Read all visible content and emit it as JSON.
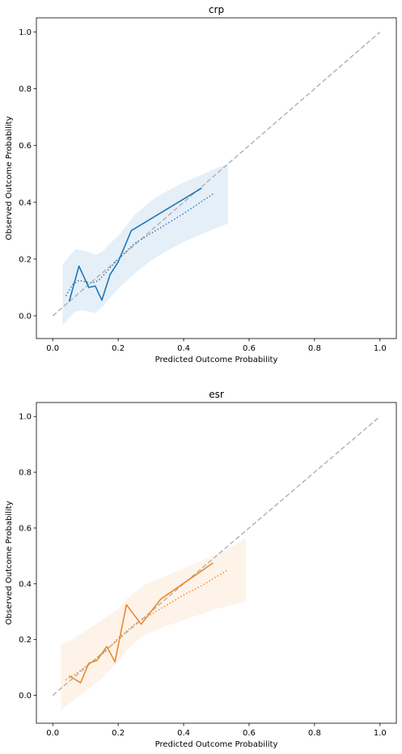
{
  "chart_data": [
    {
      "type": "line",
      "title": "crp",
      "xlabel": "Predicted Outcome Probability",
      "ylabel": "Observed Outcome Probability",
      "xlim": [
        -0.05,
        1.05
      ],
      "ylim": [
        -0.08,
        1.05
      ],
      "xticks": [
        0.0,
        0.2,
        0.4,
        0.6,
        0.8,
        1.0
      ],
      "yticks": [
        0.0,
        0.2,
        0.4,
        0.6,
        0.8,
        1.0
      ],
      "grid": false,
      "color": "#1f77b4",
      "band_color": "#c6dbef",
      "reference_color": "#b0b0b0",
      "reference": {
        "x": [
          0.0,
          1.0
        ],
        "y": [
          0.0,
          1.0
        ]
      },
      "observed": {
        "x": [
          0.05,
          0.08,
          0.11,
          0.13,
          0.15,
          0.175,
          0.2,
          0.24,
          0.455
        ],
        "y": [
          0.05,
          0.175,
          0.1,
          0.105,
          0.055,
          0.145,
          0.19,
          0.3,
          0.45
        ]
      },
      "smoothed": {
        "x": [
          0.04,
          0.06,
          0.08,
          0.1,
          0.12,
          0.14,
          0.16,
          0.2,
          0.25,
          0.3,
          0.4,
          0.49
        ],
        "y": [
          0.07,
          0.11,
          0.125,
          0.12,
          0.115,
          0.125,
          0.15,
          0.2,
          0.255,
          0.29,
          0.36,
          0.43
        ]
      },
      "band": {
        "x": [
          0.03,
          0.05,
          0.07,
          0.09,
          0.11,
          0.13,
          0.15,
          0.18,
          0.2,
          0.25,
          0.3,
          0.35,
          0.4,
          0.45,
          0.5,
          0.535
        ],
        "upper": [
          0.18,
          0.21,
          0.235,
          0.23,
          0.225,
          0.215,
          0.225,
          0.26,
          0.28,
          0.355,
          0.405,
          0.44,
          0.47,
          0.495,
          0.52,
          0.535
        ],
        "lower": [
          -0.035,
          -0.005,
          0.015,
          0.02,
          0.015,
          0.01,
          0.03,
          0.07,
          0.095,
          0.15,
          0.195,
          0.23,
          0.26,
          0.285,
          0.31,
          0.325
        ]
      }
    },
    {
      "type": "line",
      "title": "esr",
      "xlabel": "Predicted Outcome Probability",
      "ylabel": "Observed Outcome Probability",
      "xlim": [
        -0.05,
        1.05
      ],
      "ylim": [
        -0.1,
        1.05
      ],
      "xticks": [
        0.0,
        0.2,
        0.4,
        0.6,
        0.8,
        1.0
      ],
      "yticks": [
        0.0,
        0.2,
        0.4,
        0.6,
        0.8,
        1.0
      ],
      "grid": false,
      "color": "#e8892f",
      "band_color": "#fde4cf",
      "reference_color": "#b0b0b0",
      "reference": {
        "x": [
          0.0,
          1.0
        ],
        "y": [
          0.0,
          1.0
        ]
      },
      "observed": {
        "x": [
          0.05,
          0.085,
          0.11,
          0.135,
          0.165,
          0.19,
          0.225,
          0.27,
          0.33,
          0.49
        ],
        "y": [
          0.07,
          0.045,
          0.115,
          0.125,
          0.175,
          0.12,
          0.325,
          0.255,
          0.345,
          0.475
        ]
      },
      "smoothed": {
        "x": [
          0.04,
          0.08,
          0.12,
          0.16,
          0.2,
          0.25,
          0.3,
          0.35,
          0.4,
          0.45,
          0.5,
          0.535
        ],
        "y": [
          0.055,
          0.085,
          0.12,
          0.155,
          0.205,
          0.255,
          0.29,
          0.325,
          0.36,
          0.39,
          0.425,
          0.45
        ]
      },
      "band": {
        "x": [
          0.025,
          0.05,
          0.1,
          0.15,
          0.2,
          0.225,
          0.25,
          0.28,
          0.3,
          0.35,
          0.4,
          0.45,
          0.5,
          0.55,
          0.59
        ],
        "upper": [
          0.18,
          0.195,
          0.23,
          0.27,
          0.31,
          0.345,
          0.37,
          0.395,
          0.405,
          0.43,
          0.455,
          0.48,
          0.505,
          0.535,
          0.565
        ],
        "lower": [
          -0.055,
          -0.03,
          0.015,
          0.06,
          0.12,
          0.16,
          0.19,
          0.215,
          0.225,
          0.25,
          0.27,
          0.29,
          0.31,
          0.325,
          0.335
        ]
      }
    }
  ]
}
